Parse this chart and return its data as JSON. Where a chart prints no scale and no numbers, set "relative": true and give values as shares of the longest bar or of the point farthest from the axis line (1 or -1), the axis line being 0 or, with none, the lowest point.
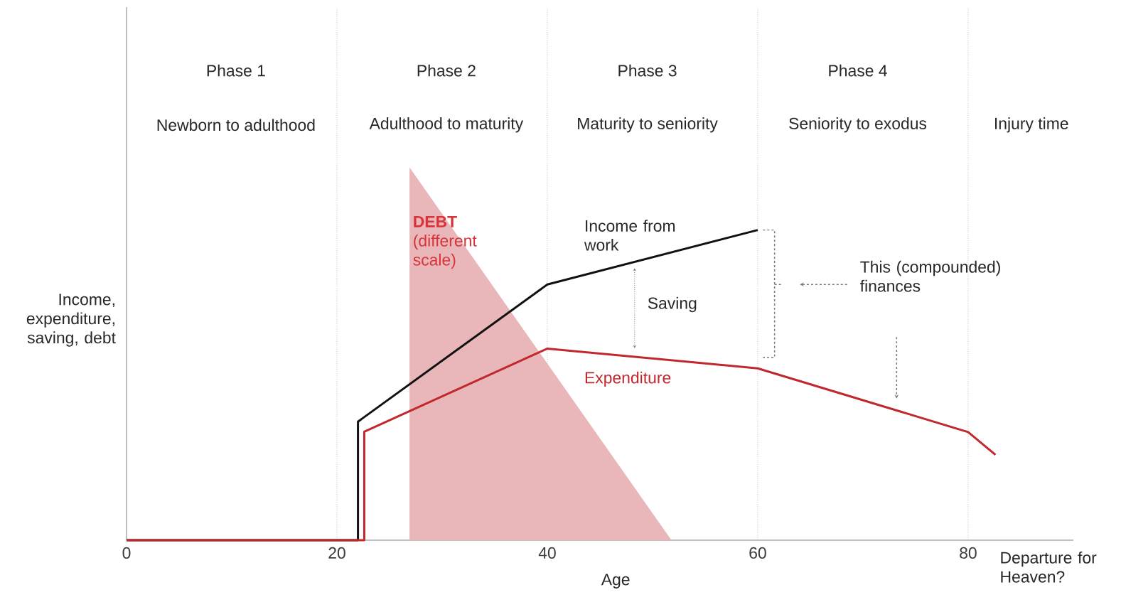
{
  "chart_data": {
    "type": "line",
    "relative": true,
    "xlabel": "Age",
    "ylabel": "Income, expenditure, saving, debt",
    "xlim": [
      0,
      90
    ],
    "xticks": [
      0,
      20,
      40,
      60,
      80
    ],
    "series": [
      {
        "name": "**DEBT** (different scale)",
        "type": "area",
        "color": "#e9b7b9",
        "x": [
          26.9,
          26.9,
          51.8
        ],
        "values": [
          0,
          1,
          0
        ]
      },
      {
        "name": "Income from work",
        "color": "#111111",
        "x": [
          0,
          22,
          22,
          40,
          60
        ],
        "values": [
          0,
          0,
          0.318,
          0.686,
          0.832
        ]
      },
      {
        "name": "Expenditure",
        "color": "#c0282d",
        "x": [
          0,
          22.6,
          22.6,
          40,
          60,
          80,
          82.6
        ],
        "values": [
          0,
          0,
          0.291,
          0.514,
          0.461,
          0.29,
          0.229
        ]
      }
    ],
    "ref_lines": [
      {
        "axis": "x",
        "value": 20,
        "color": "#a0a0a0",
        "line_style": "dotted"
      },
      {
        "axis": "x",
        "value": 40,
        "color": "#a0a0a0",
        "line_style": "dotted"
      },
      {
        "axis": "x",
        "value": 60,
        "color": "#a0a0a0",
        "line_style": "dotted"
      },
      {
        "axis": "x",
        "value": 80,
        "color": "#a0a0a0",
        "line_style": "dotted"
      }
    ],
    "annotations": [
      "Phase 1",
      "Phase 2",
      "Phase 3",
      "Phase 4",
      "Newborn to adulthood",
      "Adulthood to maturity",
      "Maturity to seniority",
      "Seniority to exodus",
      "Injury time",
      "Saving",
      "This (compounded) finances",
      "Departure for Heaven?"
    ],
    "legend": false
  }
}
